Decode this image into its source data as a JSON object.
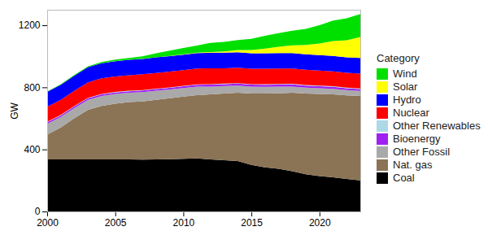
{
  "chart_data": {
    "type": "area",
    "stacked": true,
    "grid": false,
    "legend": "right",
    "ylabel": "GW",
    "legend_title": "Category",
    "x": [
      2000,
      2001,
      2002,
      2003,
      2004,
      2005,
      2006,
      2007,
      2008,
      2009,
      2010,
      2011,
      2012,
      2013,
      2014,
      2015,
      2016,
      2017,
      2018,
      2019,
      2020,
      2021,
      2022,
      2023
    ],
    "xlim": [
      2000,
      2023
    ],
    "xticks": [
      2000,
      2005,
      2010,
      2015,
      2020
    ],
    "ylim": [
      0,
      1300
    ],
    "yticks": [
      0,
      400,
      800,
      1200
    ],
    "series": [
      {
        "name": "Wind",
        "color": "#00e000",
        "values": [
          3,
          4,
          5,
          6,
          7,
          9,
          11,
          16,
          25,
          34,
          40,
          46,
          59,
          61,
          65,
          73,
          82,
          88,
          94,
          104,
          118,
          133,
          141,
          148
        ]
      },
      {
        "name": "Solar",
        "color": "#ffff00",
        "values": [
          0,
          0,
          0,
          0,
          0,
          1,
          1,
          1,
          1,
          1,
          2,
          3,
          5,
          9,
          14,
          20,
          30,
          40,
          50,
          60,
          75,
          95,
          110,
          135
        ]
      },
      {
        "name": "Hydro",
        "color": "#0000ff",
        "values": [
          95,
          96,
          97,
          98,
          98,
          99,
          99,
          99,
          100,
          100,
          100,
          100,
          100,
          100,
          100,
          100,
          100,
          100,
          100,
          100,
          100,
          100,
          100,
          100
        ]
      },
      {
        "name": "Nuclear",
        "color": "#ff0000",
        "values": [
          97,
          98,
          99,
          99,
          100,
          100,
          100,
          101,
          101,
          101,
          101,
          102,
          102,
          99,
          99,
          99,
          99,
          99,
          98,
          98,
          97,
          96,
          96,
          96
        ]
      },
      {
        "name": "Other Renewables",
        "color": "#add8e6",
        "values": [
          3,
          3,
          3,
          3,
          3,
          3,
          3,
          3,
          3,
          3,
          3,
          3,
          3,
          3,
          3,
          3,
          4,
          4,
          4,
          4,
          4,
          4,
          4,
          4
        ]
      },
      {
        "name": "Bioenergy",
        "color": "#a020f0",
        "values": [
          10,
          10,
          10,
          10,
          10,
          10,
          10,
          11,
          11,
          11,
          12,
          12,
          13,
          13,
          13,
          14,
          14,
          14,
          14,
          13,
          13,
          13,
          12,
          12
        ]
      },
      {
        "name": "Other Fossil",
        "color": "#a9a9a9",
        "values": [
          70,
          68,
          66,
          65,
          65,
          62,
          60,
          60,
          58,
          56,
          55,
          54,
          50,
          48,
          46,
          44,
          43,
          42,
          40,
          38,
          36,
          35,
          34,
          32
        ]
      },
      {
        "name": "Nat. gas",
        "color": "#8b7355",
        "values": [
          160,
          205,
          265,
          320,
          345,
          360,
          370,
          375,
          385,
          393,
          400,
          408,
          420,
          430,
          440,
          460,
          475,
          487,
          505,
          520,
          530,
          535,
          538,
          545
        ]
      },
      {
        "name": "Coal",
        "color": "#000000",
        "values": [
          335,
          336,
          336,
          335,
          335,
          335,
          335,
          334,
          335,
          337,
          340,
          342,
          335,
          330,
          325,
          300,
          285,
          275,
          260,
          240,
          228,
          220,
          210,
          200
        ]
      }
    ]
  }
}
